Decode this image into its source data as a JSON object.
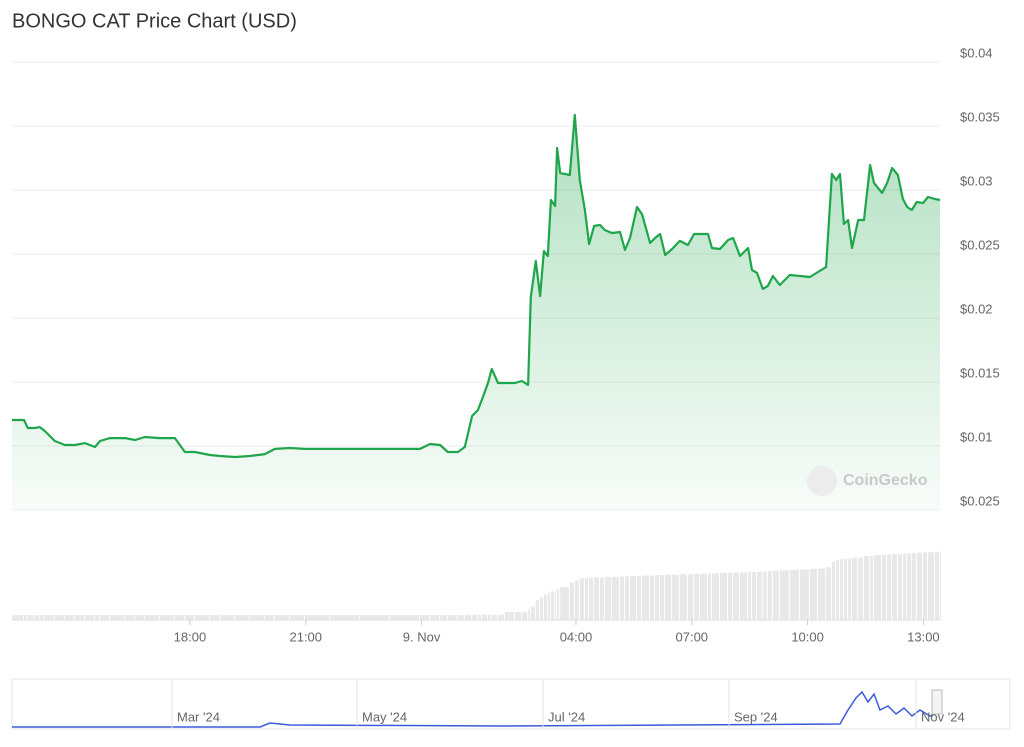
{
  "chart_data": {
    "type": "line",
    "title": "BONGO CAT Price Chart (USD)",
    "watermark": "CoinGecko",
    "color": "#1fa54b",
    "grid": true,
    "xlim": [
      13.39,
      37.43
    ],
    "xticks": [
      {
        "value": 18,
        "label": "18:00"
      },
      {
        "value": 21,
        "label": "21:00"
      },
      {
        "value": 24,
        "label": "9. Nov"
      },
      {
        "value": 28,
        "label": "04:00"
      },
      {
        "value": 31,
        "label": "07:00"
      },
      {
        "value": 34,
        "label": "10:00"
      },
      {
        "value": 37,
        "label": "13:00"
      }
    ],
    "ylim": [
      0.005,
      0.04
    ],
    "yticks": [
      {
        "value": 0.01,
        "label": "$0.01"
      },
      {
        "value": 0.015,
        "label": "$0.015"
      },
      {
        "value": 0.02,
        "label": "$0.02"
      },
      {
        "value": 0.025,
        "label": "$0.025"
      },
      {
        "value": 0.03,
        "label": "$0.03"
      },
      {
        "value": 0.035,
        "label": "$0.035"
      },
      {
        "value": 0.04,
        "label": "$0.04"
      }
    ],
    "y2lim": [
      0,
      0.025
    ],
    "y2ticks": [
      {
        "value": 0.025,
        "label": "$0.025"
      }
    ],
    "x": [
      13.39,
      13.7,
      13.8,
      13.98,
      14.11,
      14.24,
      14.5,
      14.76,
      15.02,
      15.28,
      15.54,
      15.67,
      15.93,
      16.32,
      16.58,
      16.83,
      17.22,
      17.61,
      17.87,
      18.13,
      18.52,
      18.78,
      19.17,
      19.55,
      19.94,
      20.2,
      20.59,
      20.98,
      21.63,
      22.4,
      23.18,
      23.96,
      24.22,
      24.48,
      24.68,
      24.94,
      25.12,
      25.31,
      25.46,
      25.56,
      25.72,
      25.82,
      25.98,
      26.16,
      26.42,
      26.6,
      26.76,
      26.83,
      26.96,
      27.07,
      27.17,
      27.27,
      27.35,
      27.46,
      27.51,
      27.59,
      27.84,
      27.97,
      28.1,
      28.23,
      28.34,
      28.47,
      28.62,
      28.75,
      28.93,
      29.14,
      29.27,
      29.4,
      29.58,
      29.71,
      29.92,
      30.05,
      30.18,
      30.31,
      30.49,
      30.69,
      30.9,
      31.06,
      31.21,
      31.42,
      31.52,
      31.73,
      31.94,
      32.07,
      32.25,
      32.46,
      32.56,
      32.69,
      32.84,
      32.97,
      33.1,
      33.28,
      33.54,
      33.8,
      34.06,
      34.27,
      34.48,
      34.63,
      34.74,
      34.84,
      34.94,
      35.05,
      35.15,
      35.31,
      35.46,
      35.62,
      35.72,
      35.93,
      36.06,
      36.19,
      36.34,
      36.47,
      36.58,
      36.7,
      36.83,
      36.99,
      37.12,
      37.3,
      37.43
    ],
    "values": [
      0.01203,
      0.01203,
      0.01141,
      0.01141,
      0.01148,
      0.01117,
      0.01039,
      0.01008,
      0.01008,
      0.01023,
      0.00992,
      0.01039,
      0.01062,
      0.01062,
      0.01047,
      0.0107,
      0.01062,
      0.01062,
      0.00953,
      0.00953,
      0.0093,
      0.00922,
      0.00914,
      0.00922,
      0.00937,
      0.00977,
      0.00984,
      0.00977,
      0.00977,
      0.00977,
      0.00977,
      0.00977,
      0.01016,
      0.01008,
      0.00953,
      0.00953,
      0.00992,
      0.01234,
      0.01281,
      0.01359,
      0.01492,
      0.01602,
      0.01492,
      0.01492,
      0.01492,
      0.01508,
      0.01477,
      0.02164,
      0.02445,
      0.02172,
      0.02523,
      0.02484,
      0.02922,
      0.02875,
      0.03328,
      0.03133,
      0.03117,
      0.03586,
      0.03078,
      0.02844,
      0.02578,
      0.02719,
      0.02727,
      0.02687,
      0.02664,
      0.02672,
      0.02531,
      0.02625,
      0.02867,
      0.02812,
      0.02586,
      0.02625,
      0.02656,
      0.02492,
      0.02539,
      0.02602,
      0.0257,
      0.02656,
      0.02656,
      0.02656,
      0.02547,
      0.02539,
      0.02609,
      0.02625,
      0.02484,
      0.02547,
      0.02375,
      0.02352,
      0.02227,
      0.0225,
      0.02328,
      0.02258,
      0.02336,
      0.02328,
      0.0232,
      0.02359,
      0.02398,
      0.03125,
      0.03078,
      0.03125,
      0.02734,
      0.02766,
      0.02547,
      0.02766,
      0.02766,
      0.03195,
      0.03055,
      0.02977,
      0.03055,
      0.03172,
      0.03117,
      0.0293,
      0.02867,
      0.02844,
      0.02906,
      0.02898,
      0.02945,
      0.0293,
      0.02922
    ],
    "volume": {
      "color": "#e8e8e8",
      "values": [
        0.0011,
        0.0011,
        0.0011,
        0.0011,
        0.0011,
        0.0011,
        0.0011,
        0.0011,
        0.0011,
        0.0011,
        0.0011,
        0.0011,
        0.0011,
        0.0011,
        0.0011,
        0.0011,
        0.0011,
        0.0011,
        0.0011,
        0.0011,
        0.0011,
        0.0011,
        0.0011,
        0.0011,
        0.0011,
        0.0011,
        0.0011,
        0.0011,
        0.0011,
        0.0011,
        0.0011,
        0.0011,
        0.0011,
        0.0011,
        0.0011,
        0.0011,
        0.0011,
        0.0012,
        0.0012,
        0.0012,
        0.0012,
        0.0012,
        0.0012,
        0.0018,
        0.0018,
        0.0018,
        0.0025,
        0.003,
        0.0045,
        0.0052,
        0.0058,
        0.0062,
        0.0065,
        0.0068,
        0.007,
        0.0075,
        0.0085,
        0.009,
        0.0095,
        0.0096,
        0.0096,
        0.0097,
        0.0097,
        0.0098,
        0.0098,
        0.0099,
        0.0099,
        0.01,
        0.01,
        0.0101,
        0.0101,
        0.0102,
        0.0102,
        0.0103,
        0.0103,
        0.0104,
        0.0104,
        0.0105,
        0.0105,
        0.0106,
        0.0106,
        0.0107,
        0.0107,
        0.0108,
        0.0108,
        0.0109,
        0.0109,
        0.011,
        0.011,
        0.0111,
        0.0112,
        0.0113,
        0.0114,
        0.0115,
        0.0116,
        0.0117,
        0.012,
        0.0132,
        0.0136,
        0.0138,
        0.0139,
        0.014,
        0.0141,
        0.0142,
        0.0145,
        0.0146,
        0.0147,
        0.0148,
        0.0149,
        0.015,
        0.015,
        0.0151,
        0.0152,
        0.0152,
        0.0153,
        0.0154,
        0.0154,
        0.0155,
        0.0155
      ]
    },
    "navigator_labels": [
      "Mar '24",
      "May '24",
      "Jul '24",
      "Sep '24",
      "Nov '24"
    ]
  }
}
